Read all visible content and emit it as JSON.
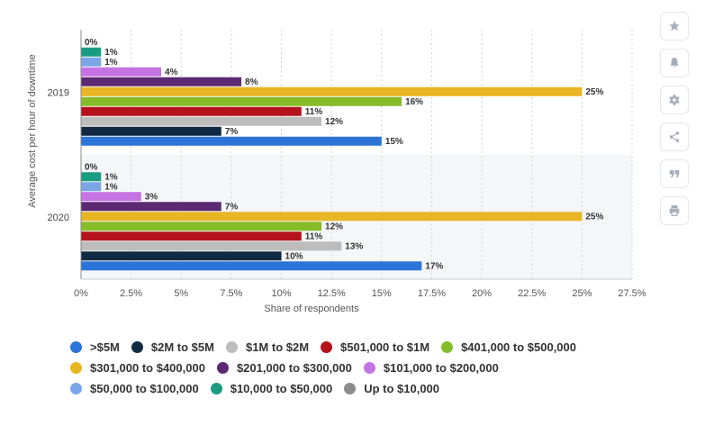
{
  "chart_data": {
    "type": "bar",
    "orientation": "horizontal",
    "categories": [
      "2019",
      "2020"
    ],
    "ylabel": "Average cost per hour of downtime",
    "xlabel": "Share of respondents",
    "xlim": [
      0,
      27.5
    ],
    "x_ticks": [
      "0%",
      "2.5%",
      "5%",
      "7.5%",
      "10%",
      "12.5%",
      "15%",
      "17.5%",
      "20%",
      "22.5%",
      "25%",
      "27.5%"
    ],
    "value_suffix": "%",
    "grid": "vertical dashed",
    "legend_position": "bottom",
    "series": [
      {
        "name": "Up to $10,000",
        "color": "#8c8c8c",
        "values": [
          0,
          0
        ],
        "labels": [
          "0%",
          "0%"
        ]
      },
      {
        "name": "$10,000 to $50,000",
        "color": "#1a9c81",
        "values": [
          1,
          1
        ],
        "labels": [
          "1%",
          "1%"
        ]
      },
      {
        "name": "$50,000 to $100,000",
        "color": "#7aa6e6",
        "values": [
          1,
          1
        ],
        "labels": [
          "1%",
          "1%"
        ]
      },
      {
        "name": "$101,000 to $200,000",
        "color": "#c573e3",
        "values": [
          4,
          3
        ],
        "labels": [
          "4%",
          "3%"
        ]
      },
      {
        "name": "$201,000 to $300,000",
        "color": "#5b2a73",
        "values": [
          8,
          7
        ],
        "labels": [
          "8%",
          "7%"
        ]
      },
      {
        "name": "$301,000 to $400,000",
        "color": "#e8b625",
        "values": [
          25,
          25
        ],
        "labels": [
          "25%",
          "25%"
        ]
      },
      {
        "name": "$401,000 to $500,000",
        "color": "#86bc28",
        "values": [
          16,
          12
        ],
        "labels": [
          "16%",
          "12%"
        ]
      },
      {
        "name": "$501,000 to $1M",
        "color": "#b5121b",
        "values": [
          11,
          11
        ],
        "labels": [
          "11%",
          "11%"
        ]
      },
      {
        "name": "$1M to $2M",
        "color": "#bdbdbd",
        "values": [
          12,
          13
        ],
        "labels": [
          "12%",
          "13%"
        ]
      },
      {
        "name": "$2M to $5M",
        "color": "#102a44",
        "values": [
          7,
          10
        ],
        "labels": [
          "7%",
          "10%"
        ]
      },
      {
        "name": ">$5M",
        "color": "#2d74d8",
        "values": [
          15,
          17
        ],
        "labels": [
          "15%",
          "17%"
        ]
      }
    ]
  },
  "legend": {
    "rows": [
      [
        {
          "label": ">$5M",
          "color": "#2d74d8"
        },
        {
          "label": "$2M to $5M",
          "color": "#102a44"
        },
        {
          "label": "$1M to $2M",
          "color": "#bdbdbd"
        },
        {
          "label": "$501,000 to $1M",
          "color": "#b5121b"
        },
        {
          "label": "$401,000 to $500,000",
          "color": "#86bc28"
        }
      ],
      [
        {
          "label": "$301,000 to $400,000",
          "color": "#e8b625"
        },
        {
          "label": "$201,000 to $300,000",
          "color": "#5b2a73"
        },
        {
          "label": "$101,000 to $200,000",
          "color": "#c573e3"
        }
      ],
      [
        {
          "label": "$50,000 to $100,000",
          "color": "#7aa6e6"
        },
        {
          "label": "$10,000 to $50,000",
          "color": "#1a9c81"
        },
        {
          "label": "Up to $10,000",
          "color": "#8c8c8c"
        }
      ]
    ]
  },
  "sidebar": {
    "buttons": [
      "star-icon",
      "bell-icon",
      "gear-icon",
      "share-icon",
      "quote-icon",
      "print-icon"
    ]
  }
}
